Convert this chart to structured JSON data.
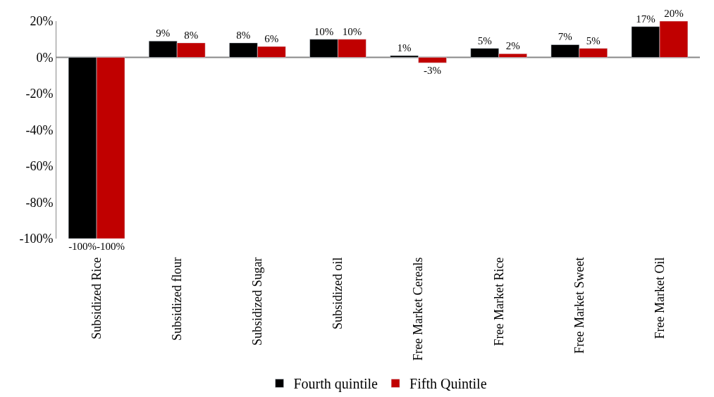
{
  "chart_data": {
    "type": "bar",
    "categories": [
      "Subsidized Rice",
      "Subsidized flour",
      "Subsidized Sugar",
      "Subsidized oil",
      "Free Market Cereals",
      "Free Market Rice",
      "Free Market Sweet",
      "Free Market Oil"
    ],
    "series": [
      {
        "name": "Fourth quintile",
        "color": "#000000",
        "values": [
          -100,
          9,
          8,
          10,
          1,
          5,
          7,
          17
        ],
        "value_labels": [
          "-100%",
          "9%",
          "8%",
          "10%",
          "1%",
          "5%",
          "7%",
          "17%"
        ]
      },
      {
        "name": "Fifth Quintile",
        "color": "#c00000",
        "values": [
          -100,
          8,
          6,
          10,
          -3,
          2,
          5,
          20
        ],
        "value_labels": [
          "-100%",
          "8%",
          "6%",
          "10%",
          "-3%",
          "2%",
          "5%",
          "20%"
        ]
      }
    ],
    "ylim": [
      -100,
      20
    ],
    "yticks": [
      {
        "value": -100,
        "label": "-100%"
      },
      {
        "value": -80,
        "label": "-80%"
      },
      {
        "value": -60,
        "label": "-60%"
      },
      {
        "value": -40,
        "label": "-40%"
      },
      {
        "value": -20,
        "label": "-20%"
      },
      {
        "value": 0,
        "label": "0%"
      },
      {
        "value": 20,
        "label": "20%"
      }
    ],
    "grid": false,
    "ref_lines": [
      {
        "axis": "y",
        "value": 0,
        "color": "#888888"
      }
    ],
    "legend": "bottom"
  }
}
